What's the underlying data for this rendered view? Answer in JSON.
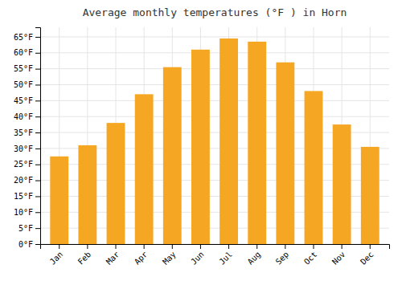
{
  "chart_data": {
    "type": "bar",
    "title": "Average monthly temperatures (°F ) in Horn",
    "categories": [
      "Jan",
      "Feb",
      "Mar",
      "Apr",
      "May",
      "Jun",
      "Jul",
      "Aug",
      "Sep",
      "Oct",
      "Nov",
      "Dec"
    ],
    "values": [
      27.5,
      31.0,
      38.0,
      47.0,
      55.5,
      61.0,
      64.5,
      63.5,
      57.0,
      48.0,
      37.5,
      30.5
    ],
    "color": "#F5A623",
    "ylim": [
      0,
      68
    ],
    "yticks": [
      {
        "value": 0,
        "label": "0°F"
      },
      {
        "value": 5,
        "label": "5°F"
      },
      {
        "value": 10,
        "label": "10°F"
      },
      {
        "value": 15,
        "label": "15°F"
      },
      {
        "value": 20,
        "label": "20°F"
      },
      {
        "value": 25,
        "label": "25°F"
      },
      {
        "value": 30,
        "label": "30°F"
      },
      {
        "value": 35,
        "label": "35°F"
      },
      {
        "value": 40,
        "label": "40°F"
      },
      {
        "value": 45,
        "label": "45°F"
      },
      {
        "value": 50,
        "label": "50°F"
      },
      {
        "value": 55,
        "label": "55°F"
      },
      {
        "value": 60,
        "label": "60°F"
      },
      {
        "value": 65,
        "label": "65°F"
      }
    ],
    "grid": true
  }
}
